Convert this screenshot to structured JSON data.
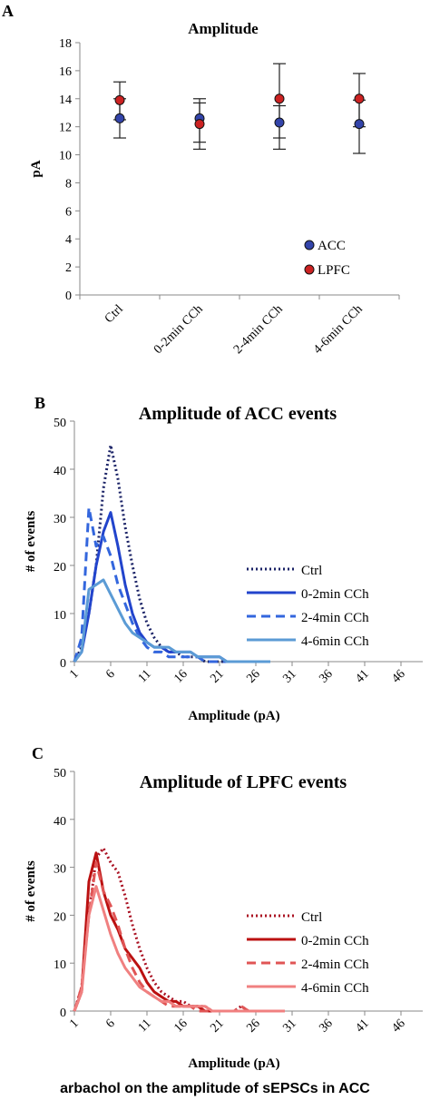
{
  "caption": "arbachol on the amplitude of sEPSCs in ACC",
  "chart_data": [
    {
      "panel": "A",
      "type": "scatter",
      "title": "Amplitude",
      "ylabel": "pA",
      "xlabel": "",
      "ylim": [
        0,
        18
      ],
      "yticks": [
        0,
        2,
        4,
        6,
        8,
        10,
        12,
        14,
        16,
        18
      ],
      "categories": [
        "Ctrl",
        "0-2min CCh",
        "2-4min CCh",
        "4-6min CCh"
      ],
      "legend_position": "bottom-right",
      "series": [
        {
          "name": "ACC",
          "color": "#3344aa",
          "values": [
            12.6,
            12.6,
            12.3,
            12.2
          ],
          "err_low": [
            11.2,
            10.9,
            11.2,
            10.1
          ],
          "err_high": [
            14.0,
            14.0,
            13.5,
            13.9
          ]
        },
        {
          "name": "LPFC",
          "color": "#cc2222",
          "values": [
            13.9,
            12.2,
            14.0,
            14.0
          ],
          "err_low": [
            12.5,
            10.4,
            10.4,
            12.0
          ],
          "err_high": [
            15.2,
            13.7,
            16.5,
            15.8
          ]
        }
      ]
    },
    {
      "panel": "B",
      "type": "line",
      "title": "Amplitude of ACC events",
      "xlabel": "Amplitude (pA)",
      "ylabel": "# of events",
      "ylim": [
        0,
        50
      ],
      "xlim": [
        1,
        49
      ],
      "yticks": [
        0,
        10,
        20,
        30,
        40,
        50
      ],
      "xticks": [
        1,
        6,
        11,
        16,
        21,
        26,
        31,
        36,
        41,
        46
      ],
      "legend_position": "right",
      "series": [
        {
          "name": "Ctrl",
          "color": "#1a2266",
          "dash": "dot",
          "x": [
            1,
            2,
            3,
            4,
            5,
            6,
            7,
            8,
            9,
            10,
            11,
            12,
            13,
            14,
            15,
            16,
            17,
            18,
            19,
            20,
            21,
            22,
            23,
            24,
            25,
            26,
            27
          ],
          "y": [
            0,
            3,
            10,
            20,
            36,
            45,
            38,
            28,
            20,
            13,
            8,
            5,
            3,
            2,
            2,
            1,
            1,
            1,
            0,
            0,
            0,
            0,
            0,
            0,
            0,
            0,
            0
          ]
        },
        {
          "name": "0-2min CCh",
          "color": "#2244cc",
          "dash": "solid",
          "x": [
            1,
            2,
            3,
            4,
            5,
            6,
            7,
            8,
            9,
            10,
            11,
            12,
            13,
            14,
            15,
            16,
            17,
            18,
            19,
            20,
            21,
            22,
            23,
            24,
            25
          ],
          "y": [
            0,
            2,
            10,
            20,
            27,
            31,
            24,
            16,
            10,
            6,
            4,
            3,
            3,
            2,
            2,
            2,
            2,
            1,
            1,
            1,
            1,
            0,
            0,
            0,
            0
          ]
        },
        {
          "name": "2-4min CCh",
          "color": "#3366dd",
          "dash": "dash",
          "x": [
            1,
            2,
            3,
            4,
            5,
            6,
            7,
            8,
            9,
            10,
            11,
            12,
            13,
            14,
            15,
            16,
            17,
            18,
            19,
            20,
            21,
            22,
            23,
            24,
            25,
            26
          ],
          "y": [
            0,
            5,
            32,
            24,
            26,
            22,
            16,
            12,
            8,
            5,
            3,
            2,
            2,
            1,
            1,
            1,
            1,
            1,
            0,
            0,
            0,
            0,
            0,
            0,
            0,
            0
          ]
        },
        {
          "name": "4-6min CCh",
          "color": "#5b9bd5",
          "dash": "solid",
          "x": [
            1,
            2,
            3,
            4,
            5,
            6,
            7,
            8,
            9,
            10,
            11,
            12,
            13,
            14,
            15,
            16,
            17,
            18,
            19,
            20,
            21,
            22,
            23,
            24,
            25,
            26,
            27,
            28
          ],
          "y": [
            0,
            2,
            15,
            16,
            17,
            14,
            11,
            8,
            6,
            5,
            4,
            3,
            3,
            3,
            2,
            2,
            2,
            1,
            1,
            1,
            1,
            0,
            0,
            0,
            0,
            0,
            0,
            0
          ]
        }
      ]
    },
    {
      "panel": "C",
      "type": "line",
      "title": "Amplitude of LPFC events",
      "xlabel": "Amplitude (pA)",
      "ylabel": "# of events",
      "ylim": [
        0,
        50
      ],
      "xlim": [
        1,
        49
      ],
      "yticks": [
        0,
        10,
        20,
        30,
        40,
        50
      ],
      "xticks": [
        1,
        6,
        11,
        16,
        21,
        26,
        31,
        36,
        41,
        46
      ],
      "legend_position": "right",
      "series": [
        {
          "name": "Ctrl",
          "color": "#aa1122",
          "dash": "dot",
          "x": [
            1,
            2,
            3,
            4,
            5,
            6,
            7,
            8,
            9,
            10,
            11,
            12,
            13,
            14,
            15,
            16,
            17,
            18,
            19,
            20,
            21,
            22,
            23,
            24,
            25,
            26,
            27,
            28
          ],
          "y": [
            0,
            5,
            20,
            32,
            34,
            31,
            29,
            24,
            18,
            13,
            9,
            6,
            4,
            3,
            2,
            2,
            1,
            1,
            1,
            0,
            0,
            0,
            0,
            1,
            0,
            0,
            0,
            0
          ]
        },
        {
          "name": "0-2min CCh",
          "color": "#bb1111",
          "dash": "solid",
          "x": [
            1,
            2,
            3,
            4,
            5,
            6,
            7,
            8,
            9,
            10,
            11,
            12,
            13,
            14,
            15,
            16,
            17,
            18,
            19,
            20,
            21,
            22,
            23,
            24,
            25,
            26
          ],
          "y": [
            0,
            4,
            27,
            33,
            25,
            20,
            17,
            13,
            11,
            9,
            6,
            4,
            3,
            2,
            2,
            1,
            1,
            1,
            0,
            0,
            0,
            0,
            0,
            0,
            0,
            0
          ]
        },
        {
          "name": "2-4min CCh",
          "color": "#e05555",
          "dash": "dash",
          "x": [
            1,
            2,
            3,
            4,
            5,
            6,
            7,
            8,
            9,
            10,
            11,
            12,
            13,
            14,
            15,
            16,
            17,
            18,
            19,
            20,
            21,
            22,
            23,
            24,
            25,
            26,
            27
          ],
          "y": [
            0,
            5,
            20,
            31,
            25,
            22,
            18,
            13,
            9,
            6,
            4,
            3,
            2,
            1,
            1,
            1,
            1,
            0,
            0,
            0,
            0,
            0,
            0,
            1,
            0,
            0,
            0
          ]
        },
        {
          "name": "4-6min CCh",
          "color": "#f08080",
          "dash": "solid",
          "x": [
            1,
            2,
            3,
            4,
            5,
            6,
            7,
            8,
            9,
            10,
            11,
            12,
            13,
            14,
            15,
            16,
            17,
            18,
            19,
            20,
            21,
            22,
            23,
            24,
            25,
            26,
            27,
            28,
            29,
            30
          ],
          "y": [
            0,
            4,
            20,
            26,
            21,
            16,
            12,
            9,
            7,
            5,
            4,
            3,
            2,
            2,
            1,
            1,
            1,
            1,
            1,
            0,
            0,
            0,
            0,
            0,
            0,
            0,
            0,
            0,
            0,
            0
          ]
        }
      ]
    }
  ]
}
